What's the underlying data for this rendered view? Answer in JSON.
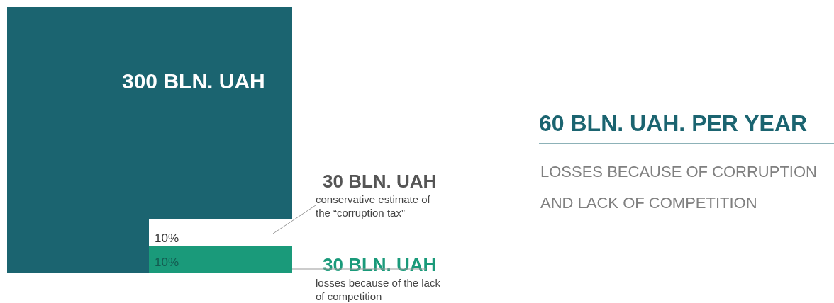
{
  "chart_data": {
    "type": "other",
    "title": "60 BLN. UAH. PER YEAR",
    "subtitle": "LOSSES BECAUSE OF CORRUPTION AND LACK OF COMPETITION",
    "categories": [
      null,
      "conservative estimate of the “corruption tax”",
      "losses because of the lack of competition"
    ],
    "values": [
      300,
      30,
      30
    ],
    "value_labels": [
      "300 BLN. UAH",
      "30 BLN. UAH",
      "30 BLN. UAH"
    ],
    "colors": [
      "#1b6470",
      "#ffffff",
      "#1a9a7a"
    ],
    "annotations": [
      "10%",
      "10%"
    ]
  }
}
